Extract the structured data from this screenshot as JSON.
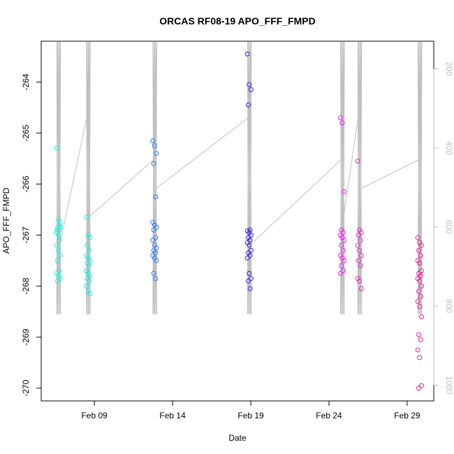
{
  "chart_data": {
    "type": "scatter",
    "title": "ORCAS RF08-19 APO_FFF_FMPD",
    "xlabel": "Date",
    "ylabel": "APO_FFF_FMPD",
    "x_ticks": [
      {
        "label": "Feb 09",
        "day": 9
      },
      {
        "label": "Feb 14",
        "day": 14
      },
      {
        "label": "Feb 19",
        "day": 19
      },
      {
        "label": "Feb 24",
        "day": 24
      },
      {
        "label": "Feb 29",
        "day": 29
      }
    ],
    "xlim": [
      5.6,
      30.7
    ],
    "ylim": [
      -270.25,
      -263.2
    ],
    "y_ticks": [
      -264,
      -265,
      -266,
      -267,
      -268,
      -269,
      -270
    ],
    "right_axis": {
      "ticks": [
        200,
        400,
        600,
        800,
        1000
      ],
      "lim": [
        1040,
        130
      ],
      "color": "#bebebe"
    },
    "profile_color": "#c0c0c0",
    "flights": [
      {
        "day": 6.7,
        "color": "#22f2da",
        "values": [
          -265.3,
          -266.7,
          -266.75,
          -266.85,
          -266.9,
          -266.95,
          -267.0,
          -266.85,
          -266.9,
          -267.1,
          -267.2,
          -267.3,
          -267.4,
          -267.5,
          -267.7,
          -267.75,
          -267.8,
          -267.85,
          -267.9,
          -266.8,
          -266.95
        ]
      },
      {
        "day": 8.6,
        "color": "#21e8e0",
        "values": [
          -266.65,
          -267.0,
          -267.05,
          -267.2,
          -267.3,
          -267.4,
          -267.45,
          -267.5,
          -267.55,
          -267.6,
          -267.7,
          -267.75,
          -267.8,
          -267.85,
          -267.9,
          -268.0,
          -268.1,
          -268.15
        ]
      },
      {
        "day": 12.85,
        "color": "#2e7bf0",
        "values": [
          -265.15,
          -265.25,
          -265.4,
          -265.6,
          -266.25,
          -266.75,
          -266.8,
          -266.85,
          -266.9,
          -267.05,
          -267.1,
          -267.2,
          -267.25,
          -267.3,
          -267.35,
          -267.4,
          -267.45,
          -267.5,
          -267.75,
          -267.85
        ]
      },
      {
        "day": 18.9,
        "color": "#3b1fe0",
        "values": [
          -263.45,
          -264.05,
          -264.15,
          -264.45,
          -266.9,
          -266.92,
          -266.95,
          -267.0,
          -267.05,
          -267.1,
          -267.15,
          -267.2,
          -267.3,
          -267.35,
          -267.4,
          -267.45,
          -267.75,
          -267.85,
          -267.9,
          -268.05
        ]
      },
      {
        "day": 24.85,
        "color": "#f21ef2",
        "values": [
          -264.7,
          -264.8,
          -266.15,
          -266.9,
          -266.95,
          -267.0,
          -267.05,
          -267.1,
          -267.2,
          -267.3,
          -267.4,
          -267.45,
          -267.5,
          -267.6,
          -267.7,
          -267.75
        ]
      },
      {
        "day": 25.95,
        "color": "#e81ecc",
        "values": [
          -265.55,
          -266.9,
          -266.95,
          -267.0,
          -267.1,
          -267.2,
          -267.3,
          -267.4,
          -267.5,
          -267.6,
          -267.85,
          -267.9,
          -268.05
        ]
      },
      {
        "day": 29.8,
        "color": "#f0159a",
        "values": [
          -267.05,
          -267.15,
          -267.2,
          -267.3,
          -267.4,
          -267.5,
          -267.55,
          -267.7,
          -267.75,
          -267.8,
          -267.85,
          -267.9,
          -268.0,
          -268.1,
          -268.2,
          -268.3,
          -268.4,
          -268.6,
          -268.95,
          -269.05,
          -269.25,
          -269.4,
          -269.95,
          -270.0
        ]
      }
    ]
  }
}
